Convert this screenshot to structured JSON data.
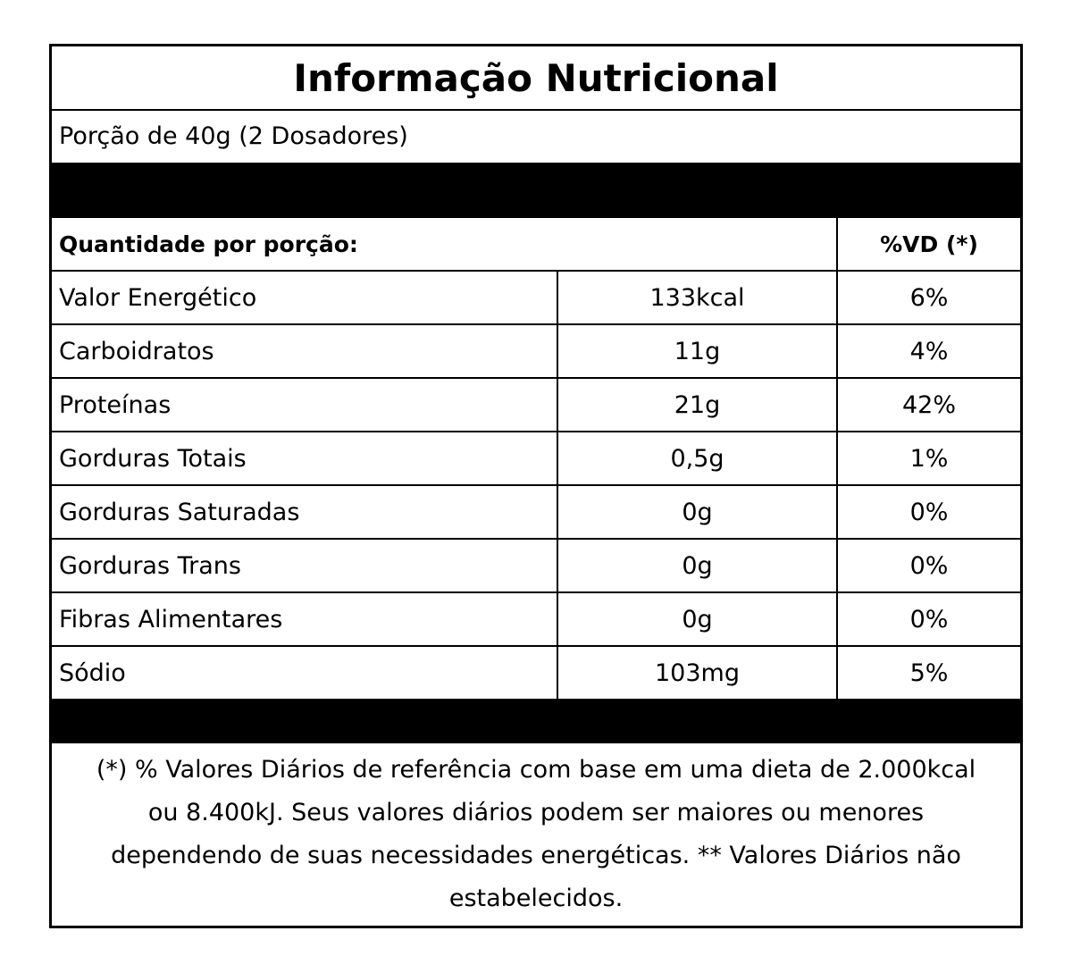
{
  "title": "Informação Nutricional",
  "portion": "Porção de 40g (2 Dosadores)",
  "header": {
    "quantity_label": "Quantidade por porção:",
    "vd_label": "%VD (*)"
  },
  "rows": [
    {
      "name": "Valor Energético",
      "amount": "133kcal",
      "vd": "6%"
    },
    {
      "name": "Carboidratos",
      "amount": "11g",
      "vd": "4%"
    },
    {
      "name": "Proteínas",
      "amount": "21g",
      "vd": "42%"
    },
    {
      "name": "Gorduras Totais",
      "amount": "0,5g",
      "vd": "1%"
    },
    {
      "name": "Gorduras Saturadas",
      "amount": "0g",
      "vd": "0%"
    },
    {
      "name": "Gorduras Trans",
      "amount": "0g",
      "vd": "0%"
    },
    {
      "name": "Fibras Alimentares",
      "amount": "0g",
      "vd": "0%"
    },
    {
      "name": "Sódio",
      "amount": "103mg",
      "vd": "5%"
    }
  ],
  "footnote": "(*) % Valores Diários de referência com base em uma dieta de 2.000kcal ou 8.400kJ. Seus valores diários podem ser maiores ou menores dependendo de suas necessidades energéticas. ** Valores Diários não estabelecidos."
}
